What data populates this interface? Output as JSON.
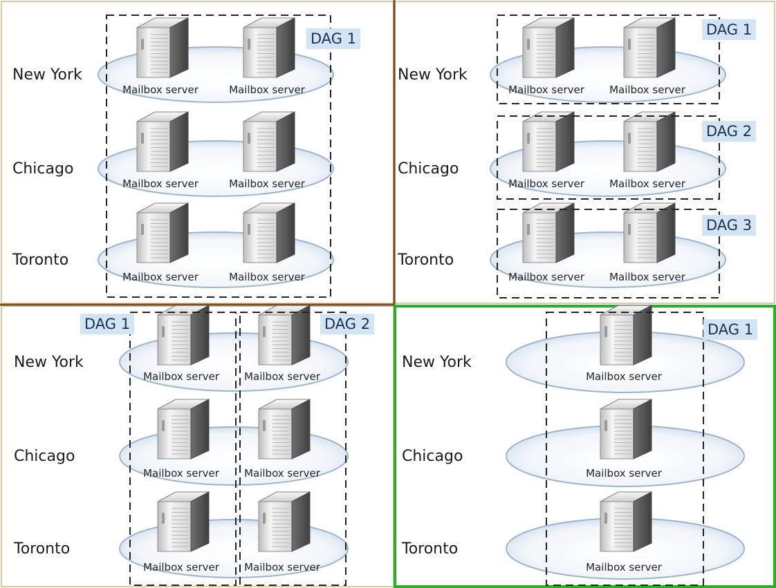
{
  "colors": {
    "accent": "#22b31f",
    "panel_border": "#d9c8a0",
    "divider": "#7a4b22",
    "dag_label_bg": "#d3e4f5",
    "ellipse_stroke": "#9cb4cc"
  },
  "icon": "server-tower-icon",
  "panels": [
    {
      "id": "top-left",
      "highlighted": false,
      "sites": [
        {
          "name": "New York",
          "servers": [
            "Mailbox server",
            "Mailbox server"
          ]
        },
        {
          "name": "Chicago",
          "servers": [
            "Mailbox server",
            "Mailbox server"
          ]
        },
        {
          "name": "Toronto",
          "servers": [
            "Mailbox server",
            "Mailbox server"
          ]
        }
      ],
      "dags": [
        {
          "label": "DAG 1"
        }
      ]
    },
    {
      "id": "top-right",
      "highlighted": false,
      "sites": [
        {
          "name": "New York",
          "servers": [
            "Mailbox server",
            "Mailbox server"
          ]
        },
        {
          "name": "Chicago",
          "servers": [
            "Mailbox server",
            "Mailbox server"
          ]
        },
        {
          "name": "Toronto",
          "servers": [
            "Mailbox server",
            "Mailbox server"
          ]
        }
      ],
      "dags": [
        {
          "label": "DAG 1"
        },
        {
          "label": "DAG 2"
        },
        {
          "label": "DAG 3"
        }
      ]
    },
    {
      "id": "bottom-left",
      "highlighted": false,
      "sites": [
        {
          "name": "New York",
          "servers": [
            "Mailbox server",
            "Mailbox server"
          ]
        },
        {
          "name": "Chicago",
          "servers": [
            "Mailbox server",
            "Mailbox server"
          ]
        },
        {
          "name": "Toronto",
          "servers": [
            "Mailbox server",
            "Mailbox server"
          ]
        }
      ],
      "dags": [
        {
          "label": "DAG 1"
        },
        {
          "label": "DAG 2"
        }
      ]
    },
    {
      "id": "bottom-right",
      "highlighted": true,
      "sites": [
        {
          "name": "New York",
          "servers": [
            "Mailbox server"
          ]
        },
        {
          "name": "Chicago",
          "servers": [
            "Mailbox server"
          ]
        },
        {
          "name": "Toronto",
          "servers": [
            "Mailbox server"
          ]
        }
      ],
      "dags": [
        {
          "label": "DAG 1"
        }
      ]
    }
  ]
}
